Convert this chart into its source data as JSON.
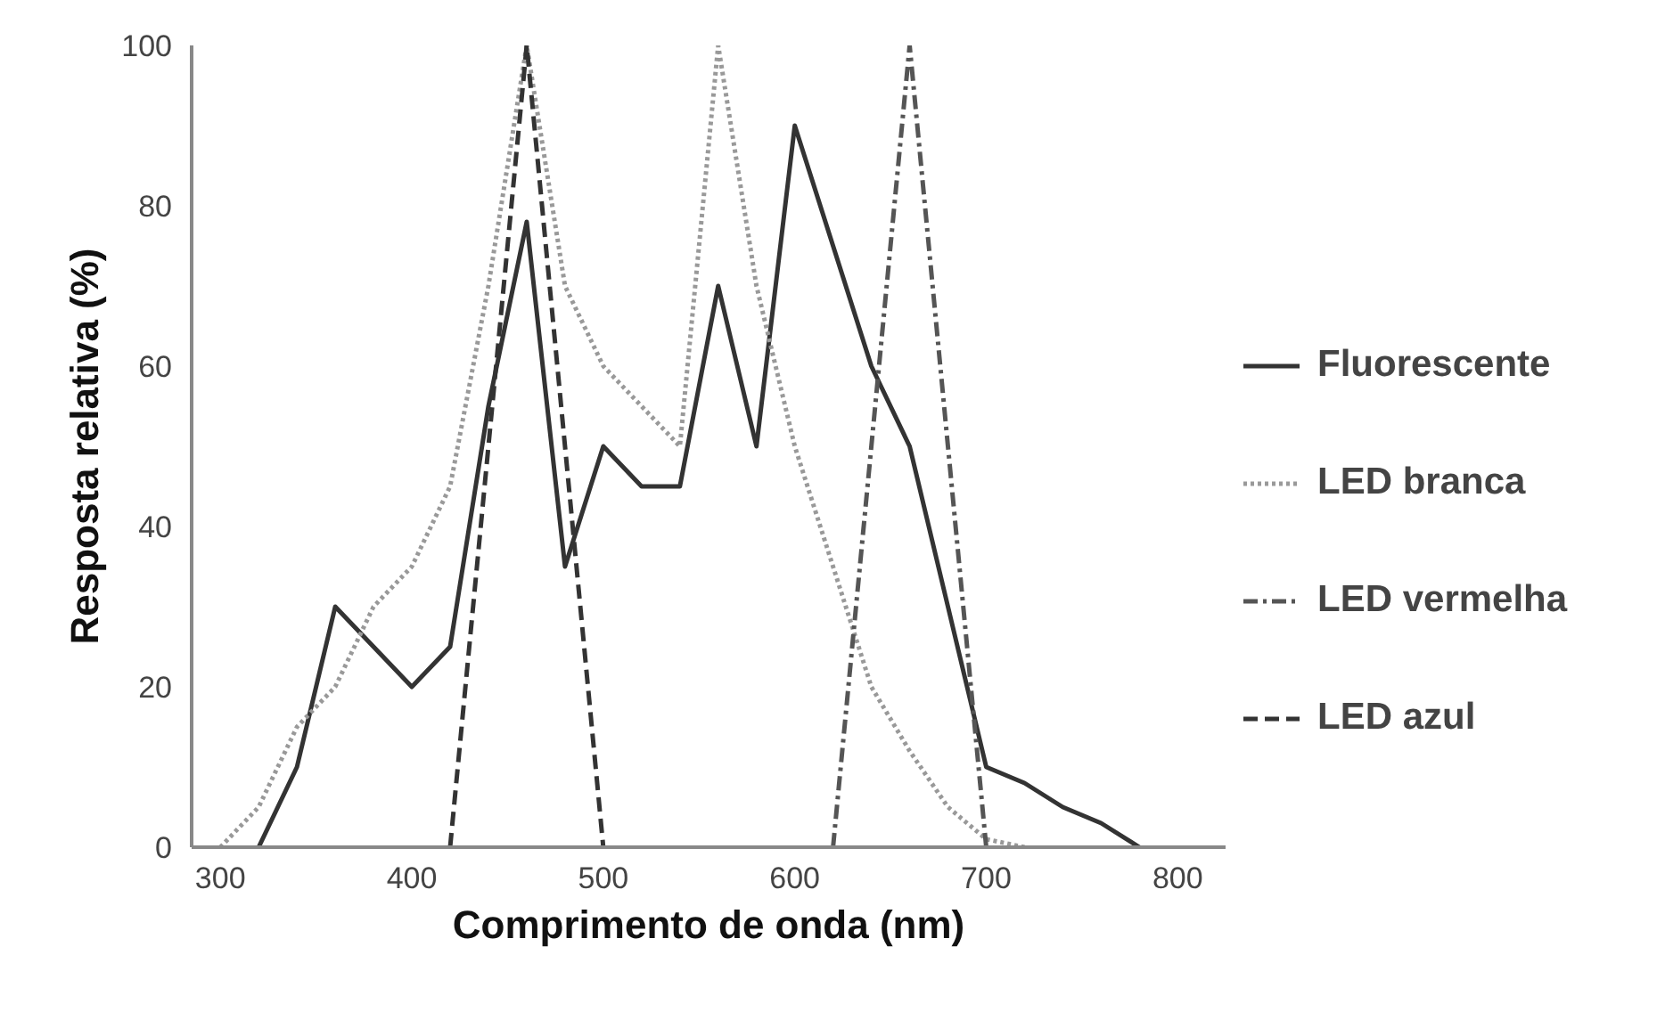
{
  "chart_data": {
    "type": "line",
    "xlabel": "Comprimento de onda (nm)",
    "ylabel": "Resposta relativa (%)",
    "xlim": [
      285,
      825
    ],
    "ylim": [
      0,
      100
    ],
    "xticks": [
      300,
      400,
      500,
      600,
      700,
      800
    ],
    "yticks": [
      0,
      20,
      40,
      60,
      80,
      100
    ],
    "grid": false,
    "legend": "right",
    "marker": "none",
    "series": [
      {
        "name": "Fluorescente",
        "color": "#333333",
        "line_style": "solid",
        "x": [
          320,
          340,
          360,
          380,
          400,
          420,
          440,
          460,
          480,
          500,
          520,
          540,
          560,
          580,
          600,
          620,
          640,
          660,
          680,
          700,
          720,
          740,
          760,
          780
        ],
        "values": [
          0,
          10,
          30,
          25,
          20,
          25,
          55,
          78,
          35,
          50,
          45,
          45,
          70,
          50,
          90,
          75,
          60,
          50,
          30,
          10,
          8,
          5,
          3,
          0
        ]
      },
      {
        "name": "LED branca",
        "color": "#999999",
        "line_style": "dotted",
        "x": [
          300,
          320,
          340,
          360,
          380,
          400,
          420,
          440,
          460,
          480,
          500,
          520,
          540,
          560,
          580,
          600,
          620,
          640,
          660,
          680,
          700,
          720
        ],
        "values": [
          0,
          5,
          15,
          20,
          30,
          35,
          45,
          70,
          100,
          70,
          60,
          55,
          50,
          100,
          70,
          50,
          35,
          20,
          12,
          5,
          1,
          0
        ]
      },
      {
        "name": "LED vermelha",
        "color": "#555555",
        "line_style": "dashdot",
        "x": [
          620,
          640,
          660,
          680,
          700
        ],
        "values": [
          0,
          50,
          100,
          50,
          0
        ]
      },
      {
        "name": "LED azul",
        "color": "#333333",
        "line_style": "dashed",
        "x": [
          420,
          460,
          500
        ],
        "values": [
          0,
          100,
          0
        ]
      }
    ]
  }
}
